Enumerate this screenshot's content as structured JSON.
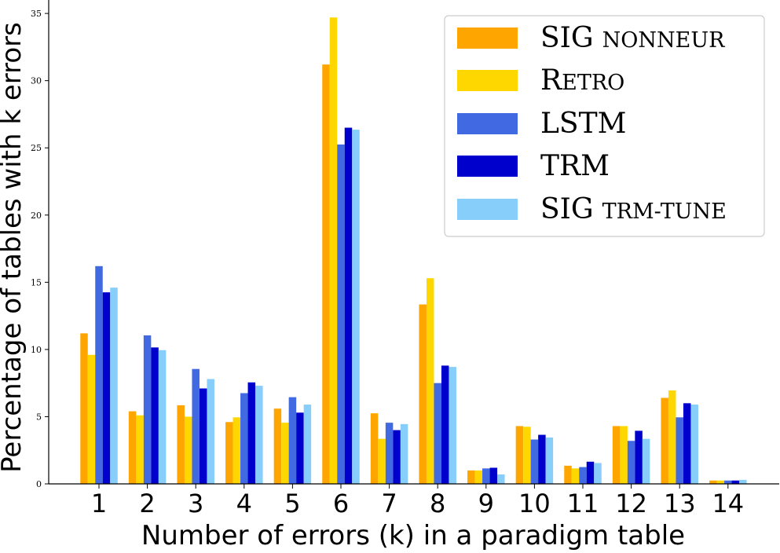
{
  "chart_data": {
    "type": "bar",
    "title": "",
    "xlabel": "Number of errors (k) in a paradigm table",
    "ylabel": "Percentage of tables with k errors",
    "ylim": [
      0,
      36
    ],
    "yticks": [
      0,
      5,
      10,
      15,
      20,
      25,
      30,
      35
    ],
    "grid": false,
    "legend_position": "top-right",
    "categories": [
      "1",
      "2",
      "3",
      "4",
      "5",
      "6",
      "7",
      "8",
      "9",
      "10",
      "11",
      "12",
      "13",
      "14"
    ],
    "series": [
      {
        "name": "SIG NONNEUR",
        "color": "#FFA500",
        "values": [
          11.2,
          5.4,
          5.85,
          4.6,
          5.6,
          31.2,
          5.25,
          13.35,
          1.0,
          4.3,
          1.35,
          4.3,
          6.4,
          0.25
        ]
      },
      {
        "name": "RETRO",
        "color": "#FFD700",
        "values": [
          9.6,
          5.1,
          5.0,
          4.95,
          4.55,
          34.7,
          3.35,
          15.3,
          1.0,
          4.25,
          1.15,
          4.3,
          6.95,
          0.25
        ]
      },
      {
        "name": "LSTM",
        "color": "#4169E1",
        "values": [
          16.2,
          11.05,
          8.55,
          6.75,
          6.45,
          25.25,
          4.55,
          7.5,
          1.15,
          3.3,
          1.25,
          3.2,
          4.95,
          0.25
        ]
      },
      {
        "name": "TRM",
        "color": "#0000CD",
        "values": [
          14.25,
          10.15,
          7.1,
          7.55,
          5.3,
          26.5,
          4.0,
          8.8,
          1.2,
          3.65,
          1.65,
          3.95,
          6.0,
          0.25
        ]
      },
      {
        "name": "SIG TRM-TUNE",
        "color": "#87CEFA",
        "values": [
          14.6,
          9.95,
          7.8,
          7.3,
          5.9,
          26.35,
          4.45,
          8.7,
          0.7,
          3.45,
          1.55,
          3.35,
          5.9,
          0.3
        ]
      }
    ],
    "legend_labels": [
      {
        "lead": "SIG",
        "tail": "NONNEUR"
      },
      {
        "lead": "R",
        "tail": "ETRO"
      },
      {
        "lead": "LSTM",
        "tail": ""
      },
      {
        "lead": "TRM",
        "tail": ""
      },
      {
        "lead": "SIG",
        "tail": "TRM-TUNE"
      }
    ]
  }
}
